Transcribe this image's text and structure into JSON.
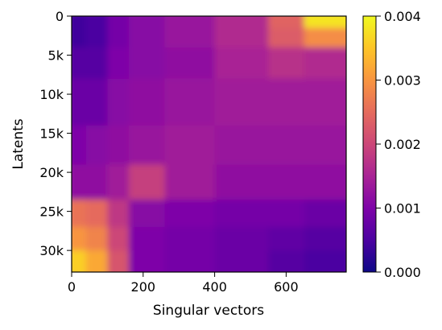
{
  "chart_data": {
    "type": "heatmap",
    "title": "",
    "xlabel": "Singular vectors",
    "ylabel": "Latents",
    "xlim": [
      0,
      768
    ],
    "ylim": [
      32768,
      0
    ],
    "x_ticks": [
      {
        "value": 0,
        "label": "0"
      },
      {
        "value": 200,
        "label": "200"
      },
      {
        "value": 400,
        "label": "400"
      },
      {
        "value": 600,
        "label": "600"
      }
    ],
    "y_ticks": [
      {
        "value": 0,
        "label": "0"
      },
      {
        "value": 5000,
        "label": "5k"
      },
      {
        "value": 10000,
        "label": "10k"
      },
      {
        "value": 15000,
        "label": "15k"
      },
      {
        "value": 20000,
        "label": "20k"
      },
      {
        "value": 25000,
        "label": "25k"
      },
      {
        "value": 30000,
        "label": "30k"
      }
    ],
    "colormap": "plasma",
    "colorbar": {
      "min": 0.0,
      "max": 0.004,
      "ticks": [
        {
          "value": 0.0,
          "label": "0.000"
        },
        {
          "value": 0.001,
          "label": "0.001"
        },
        {
          "value": 0.002,
          "label": "0.002"
        },
        {
          "value": 0.003,
          "label": "0.003"
        },
        {
          "value": 0.004,
          "label": "0.004"
        }
      ]
    },
    "x_bin_edges": [
      0,
      40,
      100,
      160,
      260,
      400,
      550,
      650,
      768
    ],
    "y_bin_edges": [
      0,
      1500,
      4000,
      8000,
      14000,
      19000,
      23500,
      27000,
      30000,
      32768
    ],
    "values": [
      [
        0.0004,
        0.0005,
        0.0009,
        0.0011,
        0.0013,
        0.0016,
        0.0024,
        0.0038
      ],
      [
        0.0004,
        0.0005,
        0.0009,
        0.0011,
        0.0013,
        0.0016,
        0.0023,
        0.0029
      ],
      [
        0.0006,
        0.0006,
        0.001,
        0.0011,
        0.0012,
        0.0015,
        0.0017,
        0.0016
      ],
      [
        0.0008,
        0.0008,
        0.0011,
        0.0012,
        0.0013,
        0.0014,
        0.0014,
        0.0014
      ],
      [
        0.001,
        0.0011,
        0.0012,
        0.0013,
        0.0014,
        0.0013,
        0.0013,
        0.0013
      ],
      [
        0.0012,
        0.0012,
        0.0014,
        0.0019,
        0.0014,
        0.0012,
        0.0012,
        0.0012
      ],
      [
        0.0026,
        0.0025,
        0.0018,
        0.0011,
        0.001,
        0.0009,
        0.0009,
        0.0008
      ],
      [
        0.003,
        0.0028,
        0.002,
        0.001,
        0.0009,
        0.0008,
        0.0007,
        0.0006
      ],
      [
        0.0036,
        0.0032,
        0.0022,
        0.001,
        0.0009,
        0.0008,
        0.0006,
        0.0005
      ]
    ]
  }
}
